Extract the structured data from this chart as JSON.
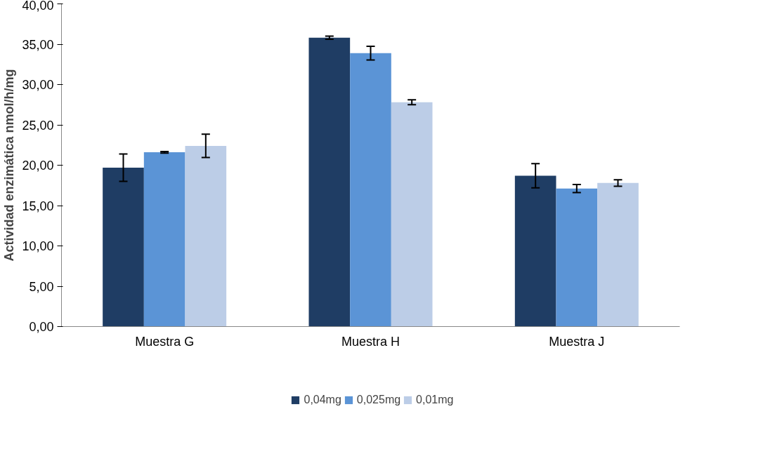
{
  "chart_data": {
    "type": "bar",
    "ylabel": "Actividad enzimática nmol/h/mg",
    "categories": [
      "Muestra G",
      "Muestra H",
      "Muestra J"
    ],
    "series": [
      {
        "name": "0,04mg",
        "color": "#1f3d64",
        "values": [
          19.7,
          35.8,
          18.7
        ],
        "errors": [
          1.7,
          0.2,
          1.5
        ]
      },
      {
        "name": "0,025mg",
        "color": "#5b94d6",
        "values": [
          21.6,
          33.9,
          17.1
        ],
        "errors": [
          0.1,
          0.85,
          0.5
        ]
      },
      {
        "name": "0,01mg",
        "color": "#bccde7",
        "values": [
          22.4,
          27.8,
          17.8
        ],
        "errors": [
          1.45,
          0.3,
          0.4
        ]
      }
    ],
    "ylim": [
      0,
      40
    ],
    "yticks": [
      {
        "value": 0,
        "label": "0,00"
      },
      {
        "value": 5,
        "label": "5,00"
      },
      {
        "value": 10,
        "label": "10,00"
      },
      {
        "value": 15,
        "label": "15,00"
      },
      {
        "value": 20,
        "label": "20,00"
      },
      {
        "value": 25,
        "label": "25,00"
      },
      {
        "value": 30,
        "label": "30,00"
      },
      {
        "value": 35,
        "label": "35,00"
      },
      {
        "value": 40,
        "label": "40,00"
      }
    ],
    "legend": "bottom",
    "grid": false
  }
}
